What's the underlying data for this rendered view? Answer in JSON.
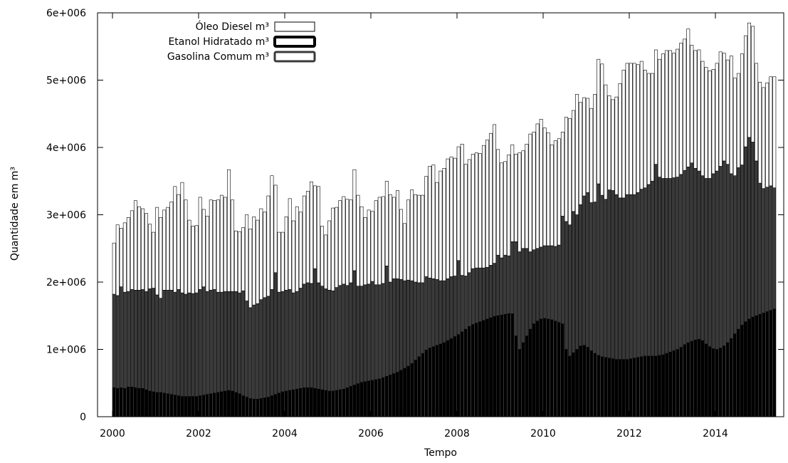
{
  "chart_data": {
    "type": "bar",
    "stacking": "stacked",
    "title": "",
    "xlabel": "Tempo",
    "ylabel": "Quantidade em m³",
    "x_start": "2000-01",
    "x_end": "2015-08",
    "x_tick_labels": [
      "2000",
      "2002",
      "2004",
      "2006",
      "2008",
      "2010",
      "2012",
      "2014"
    ],
    "ylim": [
      0,
      6000000
    ],
    "y_tick_values": [
      0,
      1000000,
      2000000,
      3000000,
      4000000,
      5000000,
      6000000
    ],
    "y_tick_labels": [
      "0",
      "1e+006",
      "2e+006",
      "3e+006",
      "4e+006",
      "5e+006",
      "6e+006"
    ],
    "legend_position": "top-left",
    "legend": [
      "Óleo Diesel m³",
      "Etanol Hidratado m³",
      "Gasolina Comum m³"
    ],
    "grid": false,
    "series": [
      {
        "name": "Etanol Hidratado m³",
        "color": "#000000",
        "values": [
          430000,
          420000,
          430000,
          420000,
          440000,
          440000,
          430000,
          420000,
          420000,
          400000,
          380000,
          370000,
          360000,
          360000,
          350000,
          340000,
          330000,
          320000,
          310000,
          300000,
          300000,
          300000,
          300000,
          300000,
          310000,
          320000,
          330000,
          340000,
          350000,
          360000,
          370000,
          380000,
          390000,
          380000,
          360000,
          340000,
          310000,
          290000,
          270000,
          260000,
          260000,
          270000,
          280000,
          290000,
          310000,
          330000,
          350000,
          370000,
          380000,
          390000,
          400000,
          410000,
          420000,
          430000,
          430000,
          430000,
          420000,
          410000,
          400000,
          390000,
          380000,
          380000,
          390000,
          400000,
          410000,
          430000,
          450000,
          470000,
          490000,
          510000,
          520000,
          530000,
          540000,
          550000,
          560000,
          580000,
          600000,
          620000,
          640000,
          660000,
          690000,
          720000,
          750000,
          790000,
          840000,
          890000,
          940000,
          990000,
          1020000,
          1040000,
          1060000,
          1080000,
          1100000,
          1130000,
          1160000,
          1190000,
          1220000,
          1260000,
          1300000,
          1340000,
          1370000,
          1390000,
          1410000,
          1430000,
          1450000,
          1470000,
          1490000,
          1500000,
          1510000,
          1520000,
          1530000,
          1530000,
          1200000,
          1000000,
          1100000,
          1200000,
          1300000,
          1380000,
          1420000,
          1450000,
          1460000,
          1450000,
          1440000,
          1420000,
          1400000,
          1380000,
          1000000,
          900000,
          950000,
          1000000,
          1050000,
          1060000,
          1030000,
          980000,
          940000,
          910000,
          890000,
          880000,
          870000,
          860000,
          850000,
          850000,
          850000,
          850000,
          860000,
          870000,
          880000,
          890000,
          900000,
          900000,
          900000,
          900000,
          910000,
          920000,
          940000,
          960000,
          980000,
          1000000,
          1030000,
          1070000,
          1100000,
          1120000,
          1140000,
          1150000,
          1130000,
          1080000,
          1040000,
          1010000,
          1000000,
          1020000,
          1050000,
          1100000,
          1160000,
          1230000,
          1300000,
          1360000,
          1410000,
          1450000,
          1480000,
          1500000,
          1520000,
          1540000,
          1560000,
          1580000,
          1600000
        ]
      },
      {
        "name": "Gasolina Comum m³",
        "color": "#3a3a3a",
        "values": [
          1390000,
          1380000,
          1500000,
          1430000,
          1420000,
          1450000,
          1450000,
          1460000,
          1470000,
          1460000,
          1520000,
          1540000,
          1450000,
          1400000,
          1530000,
          1540000,
          1550000,
          1530000,
          1580000,
          1540000,
          1520000,
          1540000,
          1530000,
          1540000,
          1580000,
          1610000,
          1530000,
          1540000,
          1540000,
          1490000,
          1480000,
          1480000,
          1470000,
          1480000,
          1500000,
          1500000,
          1560000,
          1430000,
          1350000,
          1400000,
          1420000,
          1470000,
          1490000,
          1500000,
          1580000,
          1810000,
          1500000,
          1490000,
          1500000,
          1500000,
          1440000,
          1450000,
          1490000,
          1540000,
          1560000,
          1550000,
          1780000,
          1580000,
          1540000,
          1510000,
          1500000,
          1490000,
          1530000,
          1550000,
          1560000,
          1520000,
          1540000,
          1700000,
          1450000,
          1430000,
          1440000,
          1440000,
          1470000,
          1410000,
          1400000,
          1400000,
          1640000,
          1380000,
          1410000,
          1390000,
          1350000,
          1300000,
          1280000,
          1230000,
          1160000,
          1100000,
          1050000,
          1090000,
          1040000,
          1010000,
          980000,
          940000,
          920000,
          920000,
          920000,
          900000,
          1100000,
          840000,
          790000,
          800000,
          830000,
          820000,
          800000,
          780000,
          770000,
          780000,
          790000,
          900000,
          850000,
          880000,
          860000,
          1070000,
          1400000,
          1450000,
          1400000,
          1300000,
          1150000,
          1100000,
          1080000,
          1070000,
          1080000,
          1090000,
          1100000,
          1110000,
          1150000,
          1600000,
          1900000,
          1950000,
          2100000,
          2000000,
          2100000,
          2220000,
          2300000,
          2200000,
          2250000,
          2550000,
          2400000,
          2350000,
          2500000,
          2500000,
          2450000,
          2400000,
          2400000,
          2450000,
          2440000,
          2430000,
          2450000,
          2490000,
          2500000,
          2550000,
          2600000,
          2850000,
          2650000,
          2620000,
          2600000,
          2580000,
          2570000,
          2560000,
          2570000,
          2590000,
          2610000,
          2650000,
          2550000,
          2500000,
          2450000,
          2460000,
          2500000,
          2600000,
          2650000,
          2700000,
          2750000,
          2650000,
          2450000,
          2350000,
          2400000,
          2380000,
          2600000,
          2700000,
          2600000,
          2300000,
          1950000,
          1850000,
          1850000,
          1850000,
          1800000,
          1750000,
          1700000
        ]
      },
      {
        "name": "Óleo Diesel m³",
        "color": "#ffffff",
        "values": [
          760000,
          1050000,
          870000,
          1030000,
          1100000,
          1170000,
          1330000,
          1240000,
          1200000,
          1160000,
          960000,
          830000,
          1300000,
          1200000,
          1190000,
          1230000,
          1310000,
          1570000,
          1410000,
          1640000,
          1400000,
          1080000,
          1000000,
          1000000,
          1370000,
          1150000,
          1120000,
          1340000,
          1320000,
          1370000,
          1440000,
          1400000,
          1810000,
          1360000,
          900000,
          910000,
          940000,
          1280000,
          1170000,
          1310000,
          1240000,
          1350000,
          1270000,
          1490000,
          1690000,
          1300000,
          890000,
          880000,
          1090000,
          1350000,
          1070000,
          1260000,
          1130000,
          1310000,
          1360000,
          1510000,
          1230000,
          1430000,
          890000,
          800000,
          1030000,
          1230000,
          1190000,
          1260000,
          1300000,
          1280000,
          1230000,
          1500000,
          1350000,
          1180000,
          1000000,
          1100000,
          1040000,
          1250000,
          1300000,
          1290000,
          1260000,
          1300000,
          1210000,
          1310000,
          1040000,
          850000,
          1190000,
          1350000,
          1300000,
          1300000,
          1300000,
          1490000,
          1660000,
          1690000,
          1440000,
          1630000,
          1670000,
          1780000,
          1780000,
          1750000,
          1690000,
          1950000,
          1660000,
          1680000,
          1700000,
          1710000,
          1700000,
          1820000,
          1890000,
          1960000,
          2060000,
          1570000,
          1410000,
          1390000,
          1500000,
          1440000,
          1300000,
          1470000,
          1450000,
          1550000,
          1750000,
          1750000,
          1850000,
          1900000,
          1750000,
          1680000,
          1500000,
          1570000,
          1580000,
          1250000,
          1550000,
          1580000,
          1500000,
          1790000,
          1520000,
          1460000,
          1400000,
          1400000,
          1600000,
          1850000,
          1950000,
          1700000,
          1400000,
          1350000,
          1450000,
          1700000,
          1900000,
          1950000,
          1950000,
          1950000,
          1900000,
          1900000,
          1750000,
          1650000,
          1600000,
          1700000,
          1750000,
          1850000,
          1900000,
          1900000,
          1850000,
          1900000,
          1950000,
          1950000,
          2050000,
          1750000,
          1750000,
          1800000,
          1700000,
          1650000,
          1600000,
          1550000,
          1600000,
          1700000,
          1600000,
          1550000,
          1750000,
          1450000,
          1400000,
          1650000,
          1650000,
          1700000,
          1720000,
          1450000,
          1500000,
          1500000,
          1550000,
          1620000,
          1650000,
          1700000
        ]
      }
    ]
  }
}
